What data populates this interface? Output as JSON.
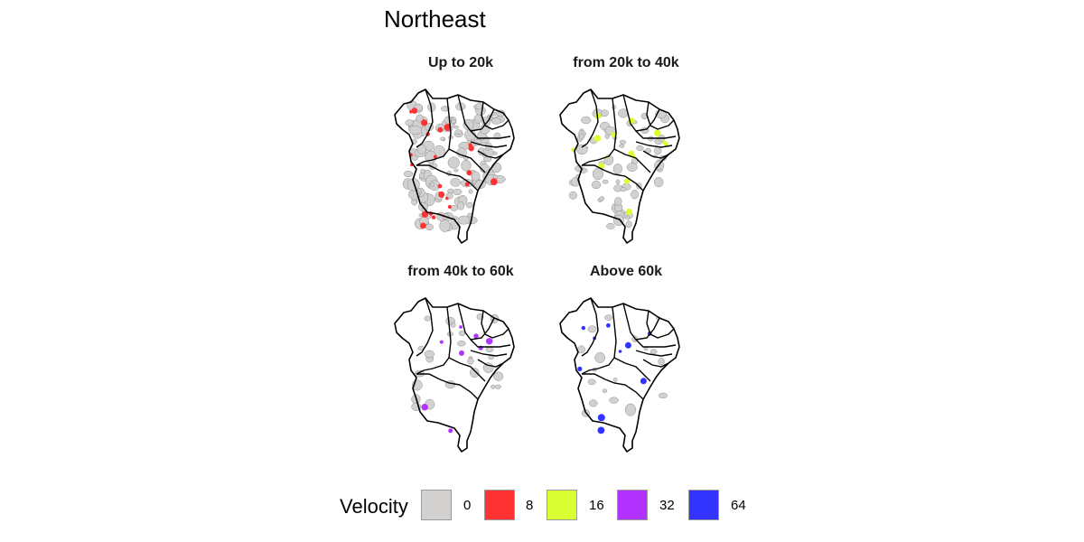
{
  "title": "Northeast",
  "panels": [
    {
      "label": "Up to 20k",
      "color": "#ff3333"
    },
    {
      "label": "from 20k to 40k",
      "color": "#d9ff33"
    },
    {
      "label": "from 40k to 60k",
      "color": "#b233ff"
    },
    {
      "label": "Above 60k",
      "color": "#3333ff"
    }
  ],
  "legend": {
    "title": "Velocity",
    "items": [
      {
        "label": "0",
        "color": "#d3d0d0"
      },
      {
        "label": "8",
        "color": "#ff3333"
      },
      {
        "label": "16",
        "color": "#d9ff33"
      },
      {
        "label": "32",
        "color": "#b233ff"
      },
      {
        "label": "64",
        "color": "#3333ff"
      }
    ]
  }
}
